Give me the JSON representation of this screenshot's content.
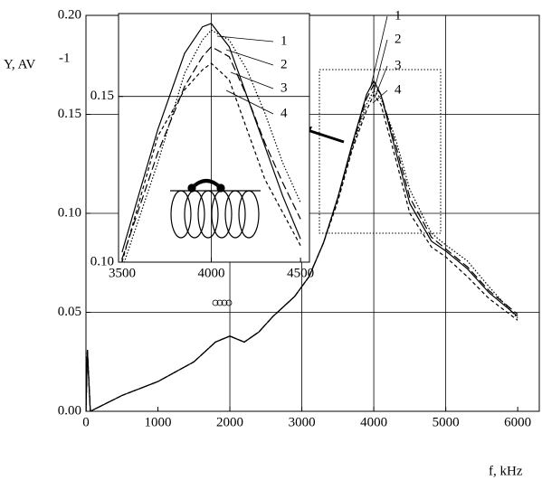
{
  "chart_data": [
    {
      "type": "line",
      "y_label": "Y, AV",
      "y_label_sup": "-1",
      "x_label": "f, kHz",
      "xlim": [
        0,
        6300
      ],
      "ylim": [
        0,
        0.2
      ],
      "xticks": [
        0,
        1000,
        2000,
        3000,
        4000,
        5000,
        6000
      ],
      "yticks": [
        {
          "value": 0,
          "label": "0.00"
        },
        {
          "value": 0.05,
          "label": "0.05"
        },
        {
          "value": 0.1,
          "label": "0.10"
        },
        {
          "value": 0.15,
          "label": "0.15"
        },
        {
          "value": 0.2,
          "label": "0.20"
        }
      ],
      "grid": true,
      "x": [
        0,
        20,
        60,
        500,
        1000,
        1500,
        1800,
        2000,
        2200,
        2400,
        2600,
        2900,
        3100,
        3300,
        3500,
        3700,
        3900,
        4000,
        4100,
        4300,
        4500,
        4800,
        5000,
        5300,
        5600,
        6000
      ],
      "series": [
        {
          "name": "1",
          "color": "#000",
          "dash": "none",
          "values": [
            0.0,
            0.031,
            0.0,
            0.008,
            0.015,
            0.025,
            0.035,
            0.038,
            0.035,
            0.04,
            0.048,
            0.058,
            0.068,
            0.085,
            0.108,
            0.135,
            0.16,
            0.167,
            0.16,
            0.132,
            0.105,
            0.086,
            0.081,
            0.072,
            0.06,
            0.048
          ]
        },
        {
          "name": "2",
          "color": "#000",
          "dash": "9 4",
          "values": [
            0.0,
            0.031,
            0.0,
            0.008,
            0.015,
            0.025,
            0.035,
            0.038,
            0.035,
            0.04,
            0.048,
            0.058,
            0.068,
            0.085,
            0.108,
            0.134,
            0.158,
            0.165,
            0.16,
            0.135,
            0.108,
            0.088,
            0.082,
            0.073,
            0.061,
            0.049
          ]
        },
        {
          "name": "3",
          "color": "#000",
          "dash": "1.5 2",
          "values": [
            0.0,
            0.031,
            0.0,
            0.008,
            0.015,
            0.025,
            0.035,
            0.038,
            0.035,
            0.04,
            0.048,
            0.058,
            0.068,
            0.085,
            0.107,
            0.133,
            0.155,
            0.162,
            0.158,
            0.138,
            0.112,
            0.09,
            0.084,
            0.076,
            0.063,
            0.047
          ]
        },
        {
          "name": "4",
          "color": "#000",
          "dash": "4 3",
          "values": [
            0.0,
            0.031,
            0.0,
            0.008,
            0.015,
            0.025,
            0.035,
            0.038,
            0.035,
            0.04,
            0.048,
            0.058,
            0.068,
            0.085,
            0.106,
            0.132,
            0.152,
            0.16,
            0.155,
            0.128,
            0.1,
            0.083,
            0.078,
            0.068,
            0.057,
            0.046
          ]
        }
      ]
    },
    {
      "type": "line",
      "xlim": [
        3480,
        4550
      ],
      "ylim": [
        0.1,
        0.175
      ],
      "xticks": [
        3500,
        4000,
        4500
      ],
      "yticks": [
        {
          "value": 0.1,
          "label": "0.10"
        },
        {
          "value": 0.15,
          "label": "0.15"
        }
      ],
      "grid": true,
      "x": [
        3500,
        3700,
        3850,
        3950,
        4000,
        4100,
        4200,
        4300,
        4400,
        4500
      ],
      "series": [
        {
          "name": "1",
          "color": "#000",
          "dash": "none",
          "values": [
            0.103,
            0.14,
            0.163,
            0.171,
            0.172,
            0.165,
            0.15,
            0.135,
            0.12,
            0.107
          ]
        },
        {
          "name": "2",
          "color": "#000",
          "dash": "9 4",
          "values": [
            0.101,
            0.133,
            0.153,
            0.162,
            0.165,
            0.162,
            0.15,
            0.136,
            0.124,
            0.113
          ]
        },
        {
          "name": "3",
          "color": "#000",
          "dash": "1.5 2",
          "values": [
            0.098,
            0.13,
            0.157,
            0.167,
            0.17,
            0.167,
            0.158,
            0.145,
            0.13,
            0.118
          ]
        },
        {
          "name": "4",
          "color": "#000",
          "dash": "4 3",
          "values": [
            0.1,
            0.138,
            0.152,
            0.158,
            0.16,
            0.155,
            0.14,
            0.125,
            0.115,
            0.105
          ]
        }
      ]
    }
  ]
}
